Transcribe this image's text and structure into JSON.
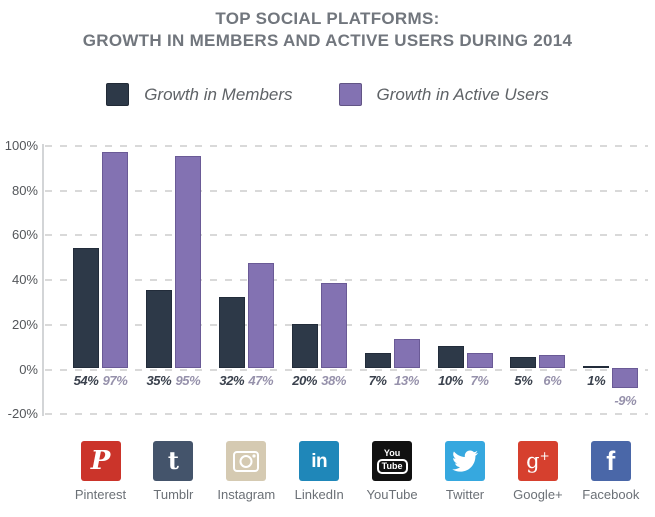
{
  "title": {
    "line1": "TOP SOCIAL PLATFORMS:",
    "line2": "GROWTH IN MEMBERS AND ACTIVE USERS DURING 2014"
  },
  "legend": {
    "items": [
      {
        "label": "Growth in Members",
        "color": "#2d3948"
      },
      {
        "label": "Growth in Active Users",
        "color": "#8372b2"
      }
    ]
  },
  "chart_data": {
    "type": "bar",
    "title": "TOP SOCIAL PLATFORMS: GROWTH IN MEMBERS AND ACTIVE USERS DURING 2014",
    "categories": [
      "Pinterest",
      "Tumblr",
      "Instagram",
      "LinkedIn",
      "YouTube",
      "Twitter",
      "Google+",
      "Facebook"
    ],
    "series": [
      {
        "name": "Growth in Members",
        "color": "#2d3948",
        "label_color": "#3a414d",
        "values": [
          54,
          35,
          32,
          20,
          7,
          10,
          5,
          1
        ]
      },
      {
        "name": "Growth in Active Users",
        "color": "#8372b2",
        "label_color": "#9691ab",
        "values": [
          97,
          95,
          47,
          38,
          13,
          7,
          6,
          -9
        ]
      }
    ],
    "value_label_format": "{v}%",
    "y_ticks": [
      100,
      80,
      60,
      40,
      20,
      0,
      -20
    ],
    "y_tick_labels": [
      "100%",
      "80%",
      "60%",
      "40%",
      "20%",
      "0%",
      "-20%"
    ],
    "ylim": [
      -20,
      100
    ],
    "grid": {
      "style": "dashed",
      "color": "#d9d9d9",
      "orientation": "horizontal"
    },
    "legend_position": "top"
  },
  "platform_icons": [
    {
      "name": "pinterest-icon",
      "color": "#cb342a"
    },
    {
      "name": "tumblr-icon",
      "color": "#44546b"
    },
    {
      "name": "instagram-icon",
      "color": "#d5cab2"
    },
    {
      "name": "linkedin-icon",
      "color": "#1f87b9"
    },
    {
      "name": "youtube-icon",
      "color": "#111111"
    },
    {
      "name": "twitter-icon",
      "color": "#36a8df"
    },
    {
      "name": "googleplus-icon",
      "color": "#d6402e"
    },
    {
      "name": "facebook-icon",
      "color": "#4a67a8"
    }
  ],
  "youtube_icon_text": {
    "top": "You",
    "bottom": "Tube"
  },
  "googleplus_icon_text": {
    "g": "g",
    "plus": "+"
  }
}
